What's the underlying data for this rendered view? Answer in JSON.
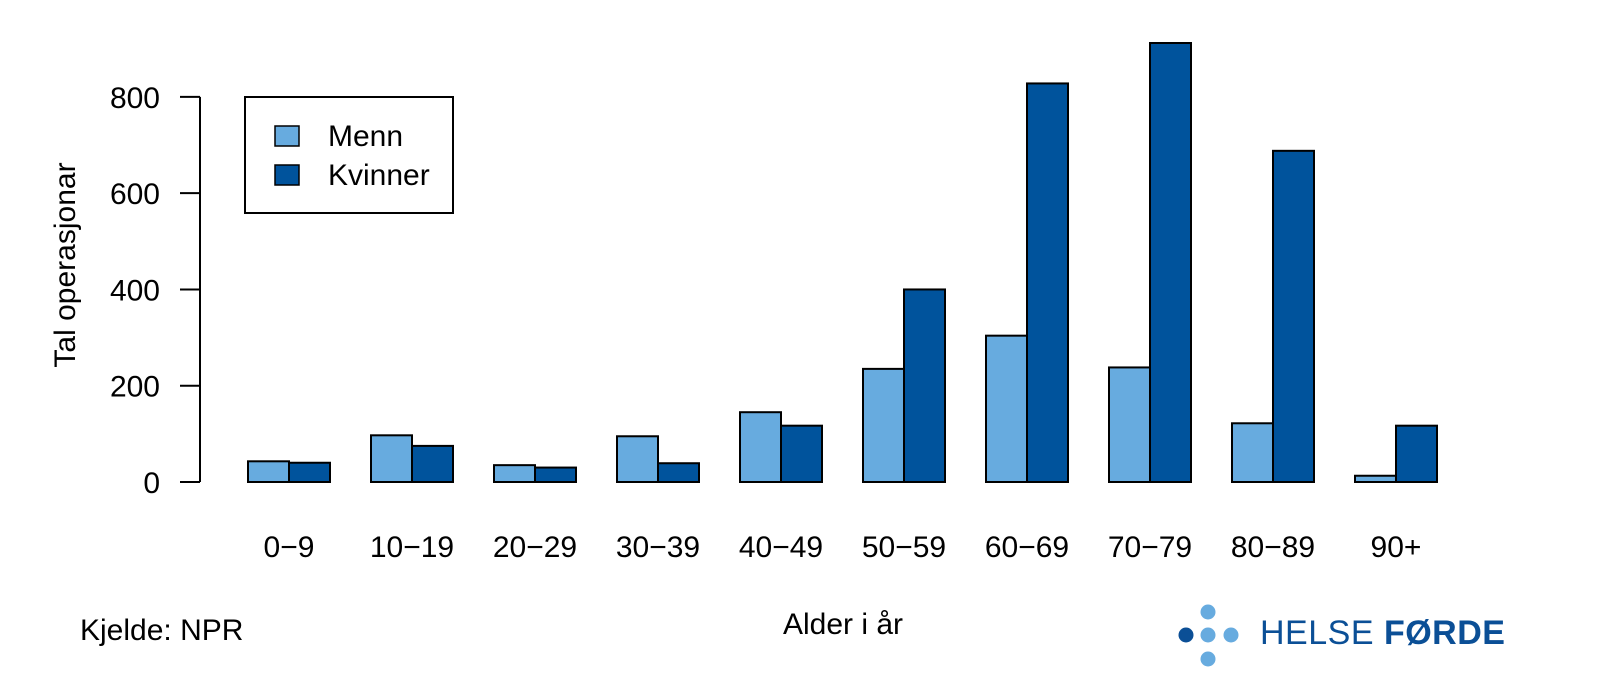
{
  "chart_data": {
    "type": "bar",
    "categories": [
      "0−9",
      "10−19",
      "20−29",
      "30−39",
      "40−49",
      "50−59",
      "60−69",
      "70−79",
      "80−89",
      "90+"
    ],
    "series": [
      {
        "name": "Menn",
        "color": "#67abdf",
        "values": [
          43,
          97,
          35,
          95,
          145,
          235,
          304,
          238,
          122,
          13
        ]
      },
      {
        "name": "Kvinner",
        "color": "#00539c",
        "values": [
          40,
          75,
          30,
          39,
          117,
          400,
          828,
          912,
          688,
          117
        ]
      }
    ],
    "xlabel": "Alder i år",
    "ylabel": "Tal operasjonar",
    "ylim": [
      0,
      912
    ],
    "yticks": [
      0,
      200,
      400,
      600,
      800
    ],
    "legend_position": "top-left",
    "grid": false
  },
  "source": "Kjelde: NPR",
  "logo": {
    "text_light": "HELSE ",
    "text_bold": "FØRDE",
    "colors": {
      "dark": "#0b4f96",
      "light": "#67abdf"
    }
  }
}
